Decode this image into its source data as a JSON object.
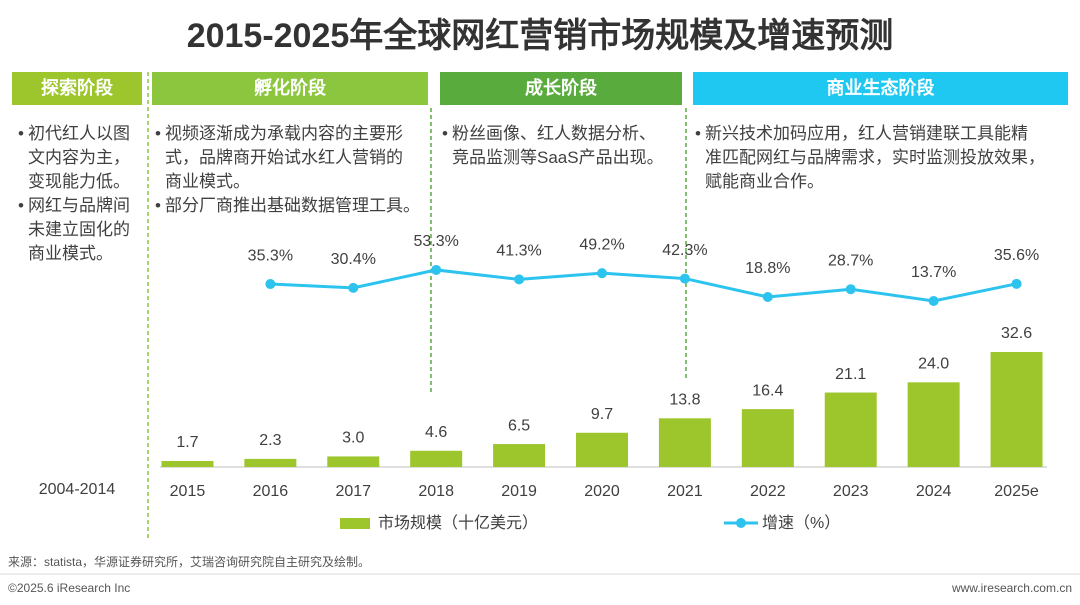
{
  "chart_data": {
    "type": "bar",
    "title": "2015-2025年全球网红营销市场规模及增速预测",
    "categories": [
      "2015",
      "2016",
      "2017",
      "2018",
      "2019",
      "2020",
      "2021",
      "2022",
      "2023",
      "2024",
      "2025e"
    ],
    "series": [
      {
        "name": "市场规模（十亿美元）",
        "type": "bar",
        "color": "#9dc62d",
        "values": [
          1.7,
          2.3,
          3.0,
          4.6,
          6.5,
          9.7,
          13.8,
          16.4,
          21.1,
          24.0,
          32.6
        ],
        "value_labels": [
          "1.7",
          "2.3",
          "3.0",
          "4.6",
          "6.5",
          "9.7",
          "13.8",
          "16.4",
          "21.1",
          "24.0",
          "32.6"
        ]
      },
      {
        "name": "增速（%）",
        "type": "line",
        "axis": "y2",
        "color": "#2cc3ee",
        "values": [
          null,
          35.3,
          30.4,
          53.3,
          41.3,
          49.2,
          42.3,
          18.8,
          28.7,
          13.7,
          35.6
        ],
        "value_labels": [
          null,
          "35.3%",
          "30.4%",
          "53.3%",
          "41.3%",
          "49.2%",
          "42.3%",
          "18.8%",
          "28.7%",
          "13.7%",
          "35.6%"
        ]
      }
    ],
    "ylim": [
      0,
      35
    ],
    "y2lim": [
      0,
      60
    ],
    "pre_period_label": "2004-2014",
    "stages": [
      {
        "name": "探索阶段",
        "color": "#9dc62d",
        "bullets": [
          [
            "初代红人以图",
            "文内容为主，",
            "变现能力低。"
          ],
          [
            "网红与品牌间",
            "未建立固化的",
            "商业模式。"
          ]
        ]
      },
      {
        "name": "孵化阶段",
        "color": "#8cc63e",
        "bullets": [
          [
            "视频逐渐成为承载内容的主要形",
            "式，品牌商开始试水红人营销的",
            "商业模式。"
          ],
          [
            "部分厂商推出基础数据管理工具。"
          ]
        ]
      },
      {
        "name": "成长阶段",
        "color": "#5aab3d",
        "bullets": [
          [
            "粉丝画像、红人数据分析、",
            "竞品监测等SaaS产品出现。"
          ]
        ]
      },
      {
        "name": "商业生态阶段",
        "color": "#1fc8f0",
        "bullets": [
          [
            "新兴技术加码应用，红人营销建联工具能精",
            "准匹配网红与品牌需求，实时监测投放效果，",
            "赋能商业合作。"
          ]
        ]
      }
    ]
  },
  "footer": {
    "source": "来源：statista，华源证券研究所，艾瑞咨询研究院自主研究及绘制。",
    "copyright": "©2025.6 iResearch Inc",
    "website": "www.iresearch.com.cn"
  }
}
